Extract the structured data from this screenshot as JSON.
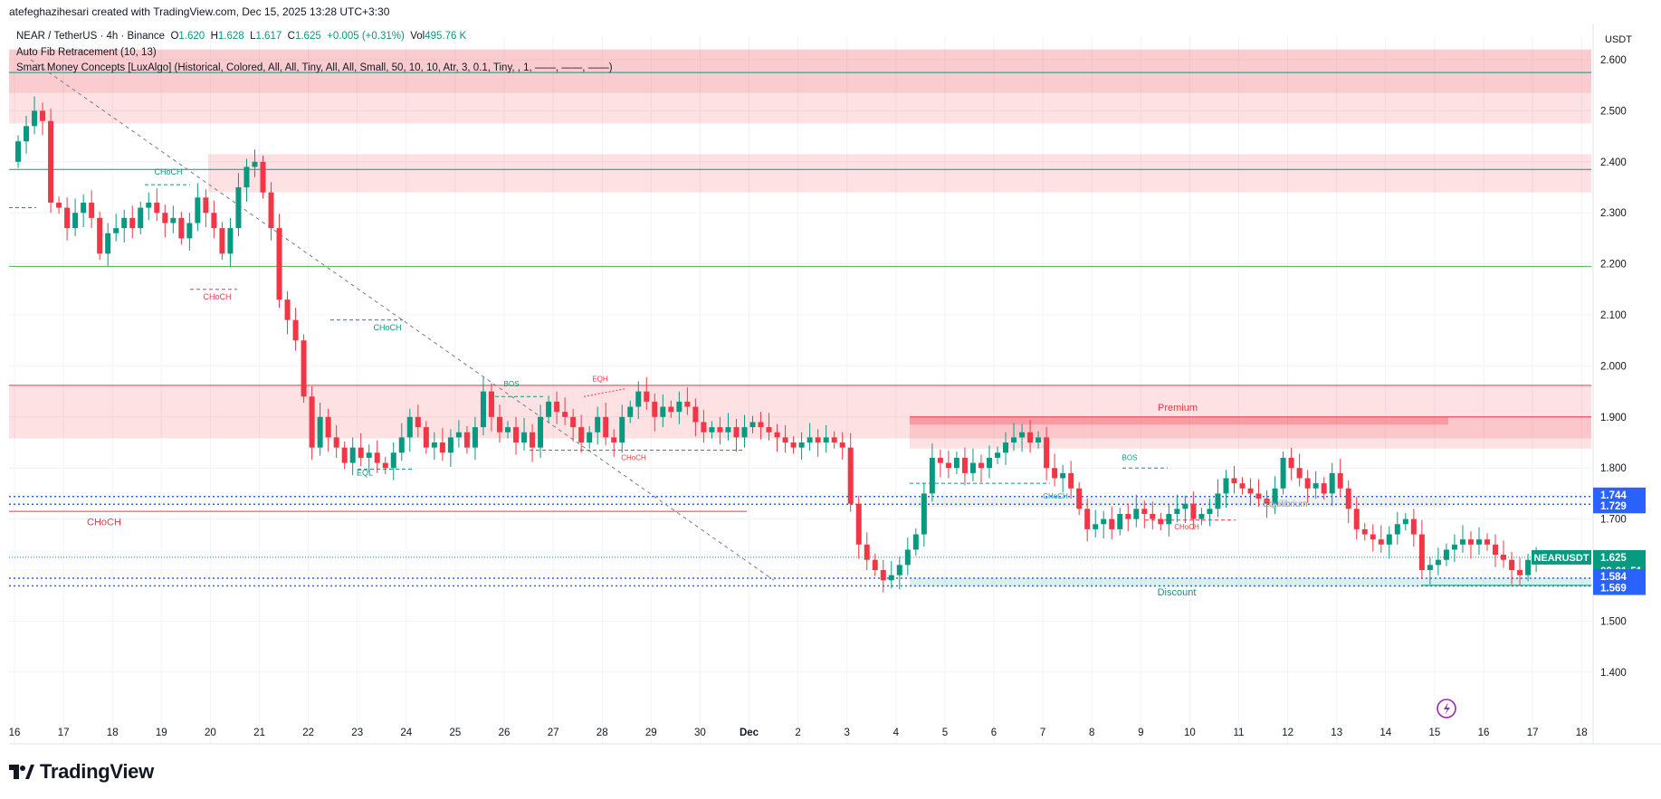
{
  "header": {
    "byline": "atefeghazihesari created with TradingView.com, Dec 15, 2025 13:28 UTC+3:30"
  },
  "legend": {
    "symbol": "NEAR / TetherUS · 4h · Binance",
    "o_label": "O",
    "o": "1.620",
    "h_label": "H",
    "h": "1.628",
    "l_label": "L",
    "l": "1.617",
    "c_label": "C",
    "c": "1.625",
    "change": "+0.005 (+0.31%)",
    "vol_label": "Vol",
    "vol": "495.76 K",
    "indicator1": "Auto Fib Retracement (10, 13)",
    "indicator2": "Smart Money Concepts [LuxAlgo] (Historical, Colored, All, All, Tiny, All, All, Small, 50, 10, 10, Atr, 3, 0.1, Tiny, , 1, ——, ——, ——)"
  },
  "currency": "USDT",
  "footer": {
    "brand": "TradingView"
  },
  "colors": {
    "up": "#089981",
    "down": "#f23645",
    "zone_red": "#f23645",
    "zone_green": "#089981",
    "badge_blue": "#2962ff",
    "fib_green": "#4caf50"
  },
  "chart_data": {
    "type": "candlestick",
    "symbol": "NEARUSDT",
    "ylim": [
      1.28,
      2.7
    ],
    "y_ticks": [
      "2.600",
      "2.500",
      "2.400",
      "2.300",
      "2.200",
      "2.100",
      "2.000",
      "1.900",
      "1.800",
      "1.700",
      "1.600",
      "1.500",
      "1.400"
    ],
    "x_ticks": [
      "16",
      "17",
      "18",
      "19",
      "20",
      "21",
      "22",
      "23",
      "24",
      "25",
      "26",
      "27",
      "28",
      "29",
      "30",
      "Dec",
      "2",
      "3",
      "4",
      "5",
      "6",
      "7",
      "8",
      "9",
      "10",
      "11",
      "12",
      "13",
      "14",
      "15",
      "16",
      "17",
      "18"
    ],
    "candle_closes": [
      2.44,
      2.47,
      2.5,
      2.48,
      2.32,
      2.31,
      2.27,
      2.3,
      2.32,
      2.29,
      2.22,
      2.26,
      2.27,
      2.29,
      2.27,
      2.31,
      2.32,
      2.3,
      2.28,
      2.29,
      2.25,
      2.28,
      2.33,
      2.3,
      2.27,
      2.22,
      2.27,
      2.35,
      2.39,
      2.4,
      2.34,
      2.27,
      2.13,
      2.09,
      2.05,
      1.94,
      1.84,
      1.9,
      1.86,
      1.84,
      1.81,
      1.84,
      1.82,
      1.83,
      1.81,
      1.8,
      1.83,
      1.86,
      1.9,
      1.88,
      1.84,
      1.85,
      1.83,
      1.86,
      1.87,
      1.84,
      1.88,
      1.95,
      1.9,
      1.87,
      1.88,
      1.85,
      1.87,
      1.84,
      1.9,
      1.93,
      1.91,
      1.9,
      1.88,
      1.85,
      1.87,
      1.9,
      1.86,
      1.85,
      1.9,
      1.92,
      1.95,
      1.93,
      1.9,
      1.92,
      1.91,
      1.93,
      1.92,
      1.89,
      1.87,
      1.88,
      1.87,
      1.88,
      1.86,
      1.88,
      1.89,
      1.88,
      1.87,
      1.86,
      1.85,
      1.84,
      1.85,
      1.86,
      1.85,
      1.86,
      1.85,
      1.84,
      1.73,
      1.65,
      1.62,
      1.6,
      1.58,
      1.59,
      1.61,
      1.64,
      1.67,
      1.75,
      1.82,
      1.81,
      1.8,
      1.82,
      1.79,
      1.81,
      1.8,
      1.82,
      1.83,
      1.85,
      1.86,
      1.87,
      1.85,
      1.86,
      1.8,
      1.78,
      1.79,
      1.76,
      1.72,
      1.68,
      1.69,
      1.7,
      1.68,
      1.71,
      1.7,
      1.72,
      1.71,
      1.7,
      1.69,
      1.71,
      1.72,
      1.73,
      1.7,
      1.71,
      1.72,
      1.75,
      1.78,
      1.77,
      1.76,
      1.75,
      1.74,
      1.73,
      1.76,
      1.82,
      1.8,
      1.78,
      1.76,
      1.77,
      1.75,
      1.79,
      1.76,
      1.72,
      1.68,
      1.67,
      1.66,
      1.65,
      1.67,
      1.69,
      1.7,
      1.67,
      1.6,
      1.61,
      1.62,
      1.64,
      1.65,
      1.66,
      1.65,
      1.66,
      1.65,
      1.63,
      1.62,
      1.6,
      1.59,
      1.62,
      1.625
    ],
    "horizontal_lines": [
      {
        "value": 2.575,
        "color": "#089981"
      },
      {
        "value": 2.385,
        "color": "#089981"
      },
      {
        "value": 2.195,
        "color": "#4caf50"
      },
      {
        "value": 1.962,
        "color": "#f23645"
      },
      {
        "value": 1.715,
        "color": "#f23645"
      }
    ],
    "zones": [
      {
        "from": 2.475,
        "to": 2.62,
        "color": "#f23645"
      },
      {
        "from": 2.34,
        "to": 2.415,
        "color": "#f23645"
      },
      {
        "from": 1.858,
        "to": 1.962,
        "color": "#f23645"
      },
      {
        "from": 1.838,
        "to": 1.9,
        "color": "#f23645"
      },
      {
        "from": 1.723,
        "to": 1.742,
        "color": "#9598a1"
      },
      {
        "from": 1.567,
        "to": 1.585,
        "color": "#089981"
      }
    ],
    "annotations": [
      {
        "text": "CHoCH",
        "color": "#089981"
      },
      {
        "text": "CHoCH",
        "color": "#f23645"
      },
      {
        "text": "CHoCH",
        "color": "#089981"
      },
      {
        "text": "EQL",
        "color": "#089981"
      },
      {
        "text": "BOS",
        "color": "#089981"
      },
      {
        "text": "EQH",
        "color": "#f23645"
      },
      {
        "text": "CHoCH",
        "color": "#f23645"
      },
      {
        "text": "CHoCH",
        "color": "#f23645"
      },
      {
        "text": "Premium",
        "color": "#f23645"
      },
      {
        "text": "BOS",
        "color": "#089981"
      },
      {
        "text": "CHoCH",
        "color": "#089981"
      },
      {
        "text": "CHoCH",
        "color": "#f23645"
      },
      {
        "text": "Equilibrium",
        "color": "#9598a1"
      },
      {
        "text": "Discount",
        "color": "#089981"
      }
    ],
    "price_badges": [
      {
        "text": "1.744",
        "color": "#2962ff"
      },
      {
        "text": "1.729",
        "color": "#2962ff"
      },
      {
        "text": "1.625",
        "color": "#089981"
      },
      {
        "text": "02:01:51",
        "color": "#089981"
      },
      {
        "text": "1.584",
        "color": "#2962ff"
      },
      {
        "text": "1.569",
        "color": "#2962ff"
      }
    ],
    "last_price_label": "NEARUSDT"
  }
}
